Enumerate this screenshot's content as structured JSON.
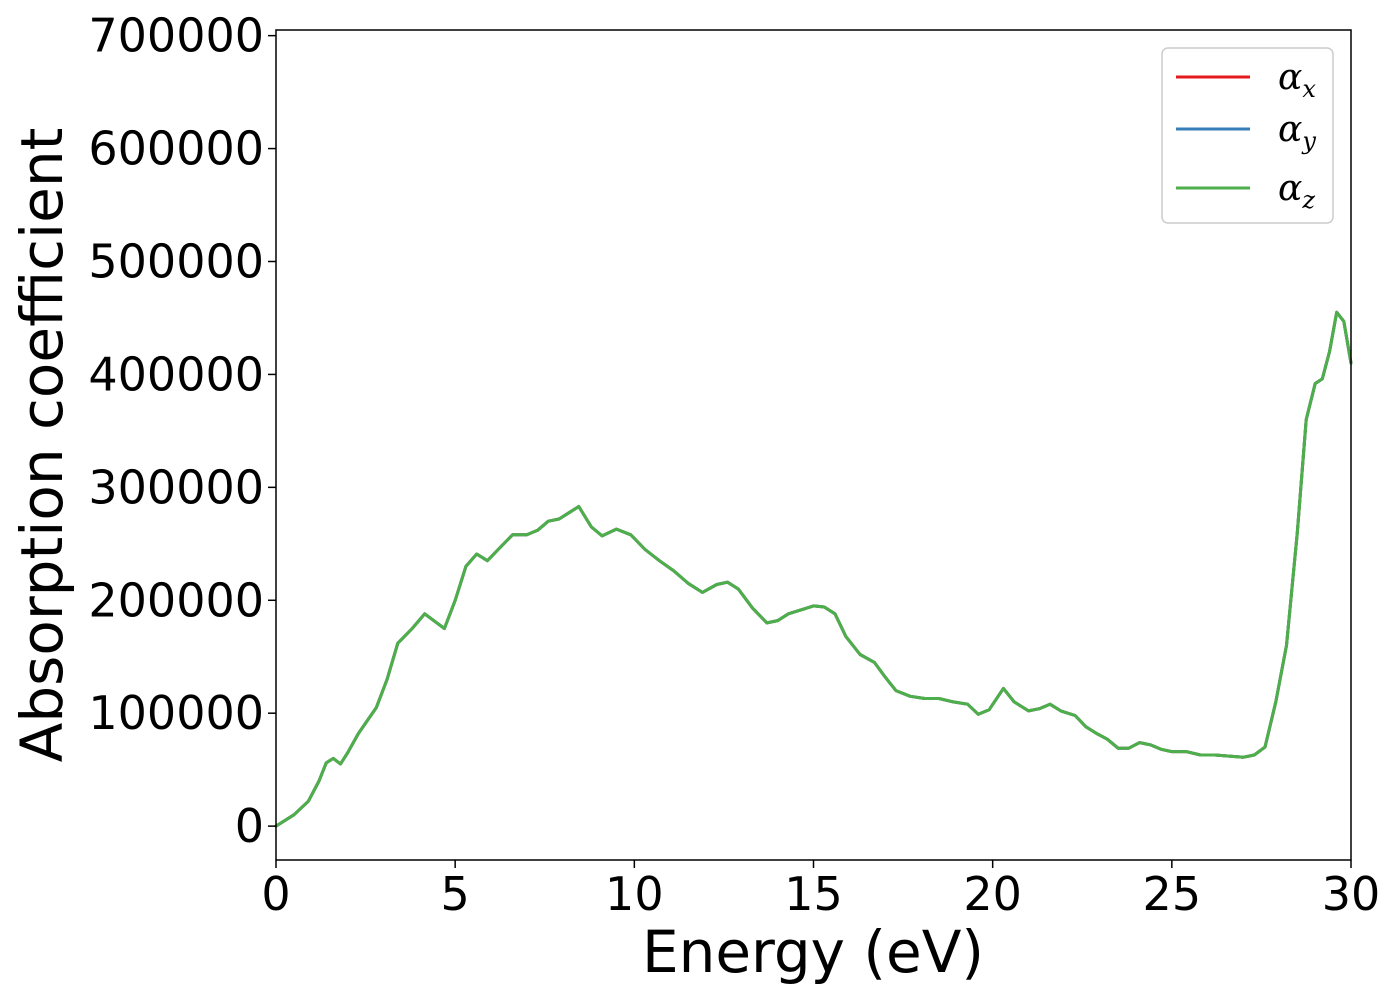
{
  "chart_data": {
    "type": "line",
    "xlabel": "Energy (eV)",
    "ylabel": "Absorption coefficient",
    "xlim": [
      0,
      30
    ],
    "ylim": [
      -30000,
      705000
    ],
    "xticks": [
      0,
      5,
      10,
      15,
      20,
      25,
      30
    ],
    "xtick_labels": [
      "0",
      "5",
      "10",
      "15",
      "20",
      "25",
      "30"
    ],
    "yticks": [
      0,
      100000,
      200000,
      300000,
      400000,
      500000,
      600000,
      700000
    ],
    "ytick_labels": [
      "0",
      "100000",
      "200000",
      "300000",
      "400000",
      "500000",
      "600000",
      "700000"
    ],
    "grid": false,
    "legend_position": "top-right",
    "series": [
      {
        "name": "α",
        "subscript": "x",
        "color": "#e41a1c"
      },
      {
        "name": "α",
        "subscript": "y",
        "color": "#377eb8"
      },
      {
        "name": "α",
        "subscript": "z",
        "color": "#4daf4a"
      }
    ],
    "x": [
      0,
      0.5,
      0.9,
      1.2,
      1.4,
      1.6,
      1.8,
      2.0,
      2.3,
      2.8,
      3.1,
      3.4,
      3.8,
      4.15,
      4.4,
      4.7,
      5.0,
      5.3,
      5.6,
      5.9,
      6.2,
      6.6,
      7.0,
      7.3,
      7.6,
      7.9,
      8.2,
      8.45,
      8.8,
      9.1,
      9.5,
      9.9,
      10.3,
      10.7,
      11.1,
      11.5,
      11.9,
      12.3,
      12.6,
      12.9,
      13.3,
      13.7,
      14.0,
      14.3,
      14.7,
      15.0,
      15.3,
      15.6,
      15.9,
      16.3,
      16.7,
      17.0,
      17.3,
      17.7,
      18.1,
      18.5,
      18.9,
      19.3,
      19.6,
      19.9,
      20.3,
      20.6,
      21.0,
      21.3,
      21.6,
      21.9,
      22.3,
      22.6,
      22.9,
      23.2,
      23.5,
      23.8,
      24.1,
      24.4,
      24.7,
      25.0,
      25.4,
      25.8,
      26.2,
      26.6,
      27.0,
      27.3,
      27.6,
      27.9,
      28.2,
      28.5,
      28.75,
      29.0,
      29.2,
      29.4,
      29.6,
      29.8,
      30.0
    ],
    "y": [
      0,
      10000,
      22000,
      40000,
      56000,
      60000,
      55000,
      65000,
      82000,
      105000,
      130000,
      162000,
      175000,
      188000,
      182000,
      175000,
      200000,
      230000,
      241000,
      235000,
      245000,
      258000,
      258000,
      262000,
      270000,
      272000,
      278000,
      283000,
      265000,
      257000,
      263000,
      258000,
      245000,
      235000,
      226000,
      215000,
      207000,
      214000,
      216000,
      210000,
      193000,
      180000,
      182000,
      188000,
      192000,
      195000,
      194000,
      188000,
      168000,
      152000,
      145000,
      132000,
      120000,
      115000,
      113000,
      113000,
      110000,
      108000,
      99000,
      103000,
      122000,
      110000,
      102000,
      104000,
      108000,
      102000,
      98000,
      88000,
      82000,
      77000,
      69000,
      69000,
      74000,
      72000,
      68000,
      66000,
      66000,
      63000,
      63000,
      62000,
      61000,
      63000,
      70000,
      110000,
      160000,
      260000,
      360000,
      392000,
      396000,
      420000,
      455000,
      447000,
      410000
    ]
  }
}
